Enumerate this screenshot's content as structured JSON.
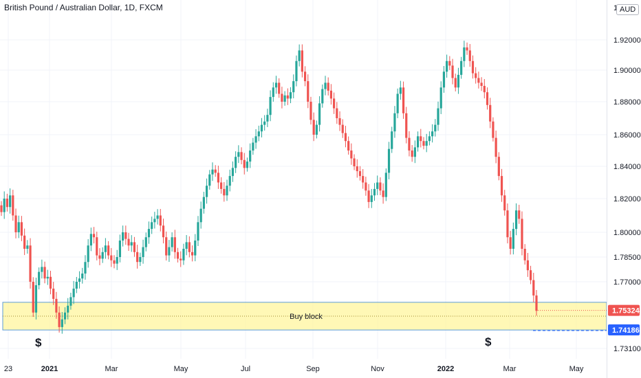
{
  "header": {
    "title": "British Pound / Australian Dollar, 1D, FXCM",
    "currency": "AUD",
    "top_scale_char": "1"
  },
  "colors": {
    "up": "#26a69a",
    "down": "#ef5350",
    "zone_fill": "#fff59d",
    "zone_border": "#5b9bd5",
    "grid": "#f0f3fa",
    "last_tag": "#ef5350",
    "level_tag": "#2962ff"
  },
  "chart_data": {
    "type": "candlestick",
    "title": "British Pound / Australian Dollar, 1D, FXCM",
    "y_ticks": [
      "1.92000",
      "1.90000",
      "1.88000",
      "1.86000",
      "1.84000",
      "1.82000",
      "1.80000",
      "1.78500",
      "1.77000",
      "1.73100"
    ],
    "x_ticks": [
      "23",
      "2021",
      "Mar",
      "May",
      "Jul",
      "Sep",
      "Nov",
      "2022",
      "Mar",
      "May"
    ],
    "x_ticks_bold": [
      "2021",
      "2022"
    ],
    "price_tags": {
      "last": "1.75324",
      "level": "1.74186"
    },
    "zone": {
      "label": "Buy block",
      "top": 1.758,
      "bottom": 1.7418
    },
    "markers": [
      "$",
      "$"
    ],
    "closes": [
      1.812,
      1.82,
      1.815,
      1.822,
      1.81,
      1.8,
      1.806,
      1.798,
      1.79,
      1.792,
      1.77,
      1.752,
      1.768,
      1.776,
      1.779,
      1.772,
      1.773,
      1.766,
      1.76,
      1.752,
      1.7435,
      1.748,
      1.752,
      1.756,
      1.761,
      1.766,
      1.77,
      1.772,
      1.775,
      1.782,
      1.792,
      1.799,
      1.797,
      1.786,
      1.784,
      1.788,
      1.792,
      1.786,
      1.783,
      1.781,
      1.785,
      1.795,
      1.8,
      1.796,
      1.792,
      1.794,
      1.788,
      1.782,
      1.785,
      1.791,
      1.797,
      1.802,
      1.806,
      1.808,
      1.81,
      1.804,
      1.797,
      1.786,
      1.791,
      1.797,
      1.788,
      1.784,
      1.783,
      1.79,
      1.794,
      1.788,
      1.786,
      1.795,
      1.806,
      1.814,
      1.821,
      1.828,
      1.835,
      1.838,
      1.836,
      1.83,
      1.826,
      1.822,
      1.828,
      1.834,
      1.839,
      1.846,
      1.849,
      1.844,
      1.839,
      1.843,
      1.85,
      1.855,
      1.859,
      1.862,
      1.866,
      1.868,
      1.872,
      1.883,
      1.889,
      1.892,
      1.885,
      1.88,
      1.884,
      1.882,
      1.886,
      1.893,
      1.906,
      1.913,
      1.899,
      1.893,
      1.88,
      1.869,
      1.86,
      1.866,
      1.879,
      1.888,
      1.892,
      1.887,
      1.882,
      1.876,
      1.87,
      1.866,
      1.861,
      1.856,
      1.85,
      1.845,
      1.84,
      1.837,
      1.834,
      1.83,
      1.825,
      1.818,
      1.822,
      1.826,
      1.83,
      1.825,
      1.821,
      1.836,
      1.851,
      1.862,
      1.873,
      1.885,
      1.889,
      1.873,
      1.858,
      1.85,
      1.846,
      1.852,
      1.859,
      1.856,
      1.853,
      1.856,
      1.859,
      1.862,
      1.866,
      1.876,
      1.889,
      1.899,
      1.906,
      1.903,
      1.895,
      1.889,
      1.897,
      1.906,
      1.915,
      1.913,
      1.906,
      1.898,
      1.895,
      1.892,
      1.89,
      1.886,
      1.878,
      1.868,
      1.858,
      1.846,
      1.834,
      1.822,
      1.813,
      1.797,
      1.79,
      1.802,
      1.813,
      1.808,
      1.79,
      1.783,
      1.777,
      1.771,
      1.762,
      1.753
    ]
  }
}
